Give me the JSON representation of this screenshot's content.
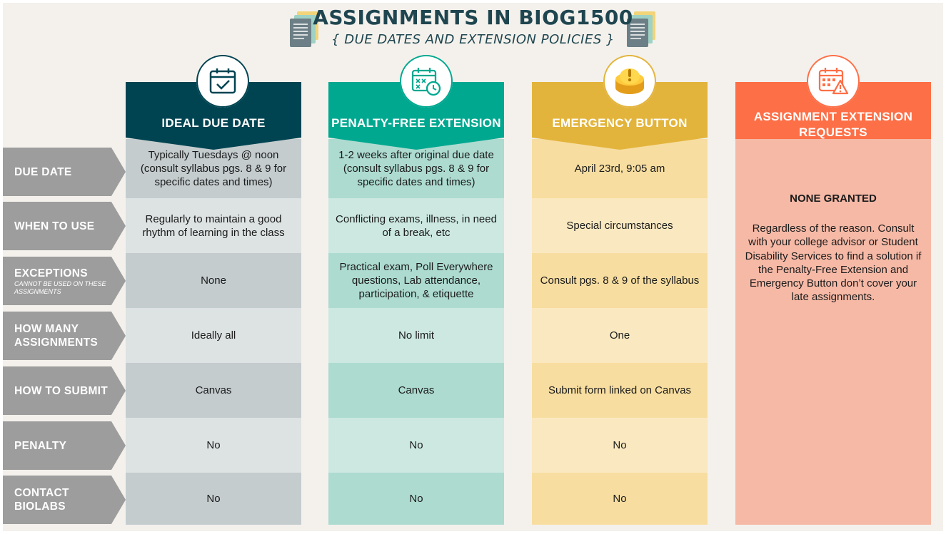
{
  "title": "ASSIGNMENTS IN BIOG1500",
  "subtitle": "{ DUE DATES AND EXTENSION POLICIES }",
  "colors": {
    "background": "#f4f1ec",
    "row_label": "#9d9d9d",
    "ideal_head": "#004452",
    "penalty_free_head": "#00a890",
    "emergency_head": "#e3b43c",
    "requests_head": "#fd6f47"
  },
  "row_labels": [
    {
      "label": "DUE DATE",
      "sublabel": ""
    },
    {
      "label": "WHEN TO USE",
      "sublabel": ""
    },
    {
      "label": "EXCEPTIONS",
      "sublabel": "CANNOT BE USED ON THESE ASSIGNMENTS"
    },
    {
      "label": "HOW MANY ASSIGNMENTS",
      "sublabel": ""
    },
    {
      "label": "HOW TO SUBMIT",
      "sublabel": ""
    },
    {
      "label": "PENALTY",
      "sublabel": ""
    },
    {
      "label": "CONTACT BIOLABS",
      "sublabel": ""
    }
  ],
  "columns": [
    {
      "key": "ideal",
      "header": "IDEAL DUE DATE",
      "icon": "calendar-check-icon",
      "cells": [
        "Typically Tuesdays @ noon (consult syllabus pgs. 8 & 9 for specific dates and times)",
        "Regularly to maintain a good rhythm of learning in the class",
        "None",
        "Ideally all",
        "Canvas",
        "No",
        "No"
      ]
    },
    {
      "key": "penalty_free",
      "header": "PENALTY-FREE EXTENSION",
      "icon": "calendar-clock-icon",
      "cells": [
        "1-2 weeks after original due date (consult syllabus pgs. 8 & 9 for specific dates and times)",
        "Conflicting exams, illness, in need of a break, etc",
        "Practical exam, Poll Everywhere questions, Lab attendance, participation, & etiquette",
        "No limit",
        "Canvas",
        "No",
        "No"
      ]
    },
    {
      "key": "emergency",
      "header": "EMERGENCY BUTTON",
      "icon": "emergency-button-icon",
      "cells": [
        "April 23rd, 9:05 am",
        "Special circumstances",
        "Consult pgs. 8 & 9 of the syllabus",
        "One",
        "Submit form linked on Canvas",
        "No",
        "No"
      ]
    }
  ],
  "requests": {
    "header": "ASSIGNMENT EXTENSION REQUESTS",
    "icon": "calendar-warning-icon",
    "strong": "NONE GRANTED",
    "body": "Regardless of the reason. Consult with your college advisor or Student Disability Services to find a solution if the Penalty-Free Extension and Emergency Button don’t cover your late assignments."
  }
}
